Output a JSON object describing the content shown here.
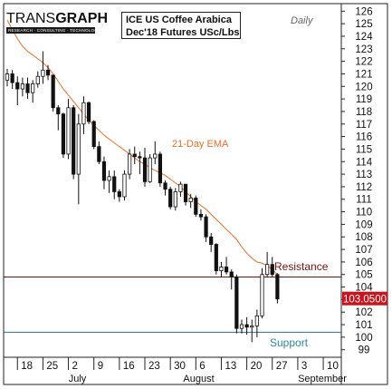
{
  "logo": {
    "main_light": "TRANS",
    "main_bold": "GRAPH",
    "tagline": "RESEARCH · CONSULTING · TECHNOLOGY"
  },
  "title": {
    "line1": "ICE US Coffee Arabica",
    "line2": "Dec'18 Futures USc/Lbs"
  },
  "frequency": "Daily",
  "chart_data": {
    "type": "candlestick",
    "title": "ICE US Coffee Arabica Dec'18 Futures USc/Lbs",
    "ylim": [
      98.4,
      126.6
    ],
    "y_ticks": [
      99,
      100,
      101,
      102,
      103,
      104,
      105,
      106,
      107,
      108,
      109,
      110,
      111,
      112,
      113,
      114,
      115,
      116,
      117,
      118,
      119,
      120,
      121,
      122,
      123,
      124,
      125,
      126
    ],
    "x_ticks": [
      {
        "label": "18",
        "index": 2
      },
      {
        "label": "25",
        "index": 7
      },
      {
        "label": "2",
        "index": 12
      },
      {
        "label": "9",
        "index": 17
      },
      {
        "label": "16",
        "index": 22
      },
      {
        "label": "23",
        "index": 27
      },
      {
        "label": "30",
        "index": 32
      },
      {
        "label": "6",
        "index": 37
      },
      {
        "label": "13",
        "index": 42
      },
      {
        "label": "20",
        "index": 47
      },
      {
        "label": "27",
        "index": 52
      },
      {
        "label": "3",
        "index": 57
      },
      {
        "label": "10",
        "index": 62
      }
    ],
    "month_labels": [
      {
        "label": "July",
        "index": 11.5
      },
      {
        "label": "August",
        "index": 34
      },
      {
        "label": "September",
        "index": 56.5
      }
    ],
    "candles": [
      {
        "o": 120.5,
        "h": 121.4,
        "l": 120.0,
        "c": 121.0
      },
      {
        "o": 121.0,
        "h": 121.3,
        "l": 119.8,
        "c": 120.3
      },
      {
        "o": 120.3,
        "h": 120.8,
        "l": 118.5,
        "c": 119.8
      },
      {
        "o": 119.8,
        "h": 120.7,
        "l": 119.2,
        "c": 120.2
      },
      {
        "o": 120.2,
        "h": 120.7,
        "l": 119.0,
        "c": 119.5
      },
      {
        "o": 119.5,
        "h": 120.5,
        "l": 118.7,
        "c": 120.2
      },
      {
        "o": 120.2,
        "h": 121.2,
        "l": 119.9,
        "c": 120.8
      },
      {
        "o": 120.8,
        "h": 122.8,
        "l": 120.2,
        "c": 121.3
      },
      {
        "o": 121.3,
        "h": 121.7,
        "l": 120.5,
        "c": 120.9
      },
      {
        "o": 120.9,
        "h": 120.9,
        "l": 118.0,
        "c": 118.3
      },
      {
        "o": 118.3,
        "h": 118.5,
        "l": 116.5,
        "c": 117.8
      },
      {
        "o": 117.8,
        "h": 117.9,
        "l": 114.3,
        "c": 114.6
      },
      {
        "o": 114.6,
        "h": 119.0,
        "l": 114.2,
        "c": 118.3
      },
      {
        "o": 118.3,
        "h": 118.5,
        "l": 112.6,
        "c": 113.0
      },
      {
        "o": 113.0,
        "h": 117.8,
        "l": 110.6,
        "c": 117.0
      },
      {
        "o": 117.0,
        "h": 119.2,
        "l": 116.2,
        "c": 118.7
      },
      {
        "o": 118.7,
        "h": 118.8,
        "l": 117.0,
        "c": 117.2
      },
      {
        "o": 117.2,
        "h": 117.3,
        "l": 115.0,
        "c": 115.2
      },
      {
        "o": 115.2,
        "h": 115.6,
        "l": 113.8,
        "c": 114.0
      },
      {
        "o": 114.0,
        "h": 114.4,
        "l": 111.8,
        "c": 112.5
      },
      {
        "o": 112.5,
        "h": 113.3,
        "l": 111.5,
        "c": 112.8
      },
      {
        "o": 112.8,
        "h": 113.3,
        "l": 111.0,
        "c": 111.6
      },
      {
        "o": 111.6,
        "h": 111.8,
        "l": 110.8,
        "c": 111.2
      },
      {
        "o": 111.2,
        "h": 113.3,
        "l": 110.9,
        "c": 113.0
      },
      {
        "o": 113.0,
        "h": 115.0,
        "l": 112.6,
        "c": 114.6
      },
      {
        "o": 114.6,
        "h": 115.2,
        "l": 113.8,
        "c": 114.4
      },
      {
        "o": 114.4,
        "h": 114.8,
        "l": 113.0,
        "c": 114.3
      },
      {
        "o": 114.3,
        "h": 115.1,
        "l": 112.0,
        "c": 112.4
      },
      {
        "o": 112.4,
        "h": 114.6,
        "l": 112.3,
        "c": 114.3
      },
      {
        "o": 114.3,
        "h": 115.6,
        "l": 113.8,
        "c": 114.6
      },
      {
        "o": 114.6,
        "h": 114.8,
        "l": 112.0,
        "c": 112.3
      },
      {
        "o": 112.3,
        "h": 112.5,
        "l": 111.3,
        "c": 111.8
      },
      {
        "o": 111.8,
        "h": 112.0,
        "l": 110.2,
        "c": 110.4
      },
      {
        "o": 110.4,
        "h": 111.9,
        "l": 110.1,
        "c": 111.6
      },
      {
        "o": 111.6,
        "h": 112.4,
        "l": 111.2,
        "c": 112.2
      },
      {
        "o": 112.2,
        "h": 112.2,
        "l": 110.5,
        "c": 110.8
      },
      {
        "o": 110.8,
        "h": 111.4,
        "l": 110.3,
        "c": 111.1
      },
      {
        "o": 111.1,
        "h": 111.3,
        "l": 109.6,
        "c": 109.8
      },
      {
        "o": 109.8,
        "h": 110.2,
        "l": 109.3,
        "c": 109.6
      },
      {
        "o": 109.6,
        "h": 109.8,
        "l": 107.6,
        "c": 108.0
      },
      {
        "o": 108.0,
        "h": 108.3,
        "l": 106.8,
        "c": 107.4
      },
      {
        "o": 107.4,
        "h": 107.5,
        "l": 105.0,
        "c": 105.3
      },
      {
        "o": 105.3,
        "h": 106.0,
        "l": 104.8,
        "c": 105.6
      },
      {
        "o": 105.6,
        "h": 106.4,
        "l": 105.0,
        "c": 105.2
      },
      {
        "o": 105.2,
        "h": 105.4,
        "l": 103.8,
        "c": 104.8
      },
      {
        "o": 104.8,
        "h": 105.0,
        "l": 100.3,
        "c": 100.7
      },
      {
        "o": 100.7,
        "h": 101.4,
        "l": 100.3,
        "c": 101.0
      },
      {
        "o": 101.0,
        "h": 101.6,
        "l": 100.2,
        "c": 100.8
      },
      {
        "o": 100.8,
        "h": 101.4,
        "l": 99.6,
        "c": 100.9
      },
      {
        "o": 100.9,
        "h": 102.2,
        "l": 100.0,
        "c": 101.7
      },
      {
        "o": 101.7,
        "h": 105.5,
        "l": 101.5,
        "c": 105.0
      },
      {
        "o": 105.0,
        "h": 106.8,
        "l": 104.8,
        "c": 105.8
      },
      {
        "o": 105.8,
        "h": 106.4,
        "l": 104.8,
        "c": 105.0
      },
      {
        "o": 105.0,
        "h": 105.1,
        "l": 102.7,
        "c": 103.05
      }
    ],
    "ema": {
      "label": "21-Day EMA",
      "values": [
        125.3,
        124.5,
        123.8,
        123.2,
        122.8,
        122.5,
        122.2,
        121.9,
        121.5,
        121.0,
        120.4,
        119.8,
        119.3,
        118.8,
        118.3,
        117.8,
        117.3,
        116.9,
        116.5,
        116.1,
        115.8,
        115.5,
        115.2,
        114.9,
        114.6,
        114.3,
        114.0,
        113.8,
        113.5,
        113.3,
        113.1,
        112.9,
        112.6,
        112.3,
        112.0,
        111.6,
        111.2,
        110.8,
        110.5,
        110.2,
        109.8,
        109.4,
        109.0,
        108.6,
        108.2,
        107.8,
        107.2,
        106.7,
        106.3,
        106.0,
        105.9,
        105.7,
        105.4,
        105.0
      ]
    },
    "resistance": {
      "label": "Resistance",
      "value": 104.8
    },
    "support": {
      "label": "Support",
      "value": 100.4
    },
    "last_price": "103.0500",
    "last_value": 103.05
  },
  "colors": {
    "up_candle": "#ffffff",
    "down_candle": "#111111",
    "ema": "#e8702a",
    "resistance": "#7a0f0f",
    "support": "#2f6f9a",
    "last_price_bg": "#c8141e",
    "ema_label": "#e8702a",
    "resistance_label": "#7a0f0f",
    "support_label": "#2f8aa0"
  }
}
